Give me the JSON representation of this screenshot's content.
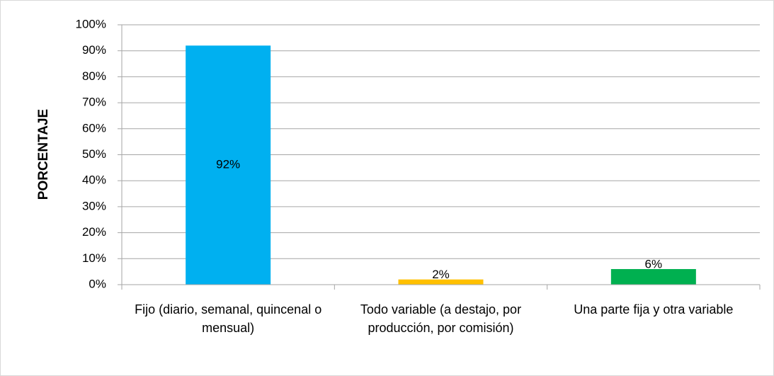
{
  "chart_data": {
    "type": "bar",
    "y_label": "PORCENTAJE",
    "categories": [
      "Fijo (diario, semanal, quincenal o mensual)",
      "Todo variable (a destajo, por producción, por comisión)",
      "Una parte fija y otra variable"
    ],
    "values": [
      92,
      2,
      6
    ],
    "value_labels": [
      "92%",
      "2%",
      "6%"
    ],
    "colors": [
      "#00b0f0",
      "#ffc000",
      "#00b050"
    ],
    "ylim": [
      0,
      100
    ],
    "yticks": [
      {
        "value": 0,
        "label": "0%"
      },
      {
        "value": 10,
        "label": "10%"
      },
      {
        "value": 20,
        "label": "20%"
      },
      {
        "value": 30,
        "label": "30%"
      },
      {
        "value": 40,
        "label": "40%"
      },
      {
        "value": 50,
        "label": "50%"
      },
      {
        "value": 60,
        "label": "60%"
      },
      {
        "value": 70,
        "label": "70%"
      },
      {
        "value": 80,
        "label": "80%"
      },
      {
        "value": 90,
        "label": "90%"
      },
      {
        "value": 100,
        "label": "100%"
      }
    ],
    "grid": true
  }
}
